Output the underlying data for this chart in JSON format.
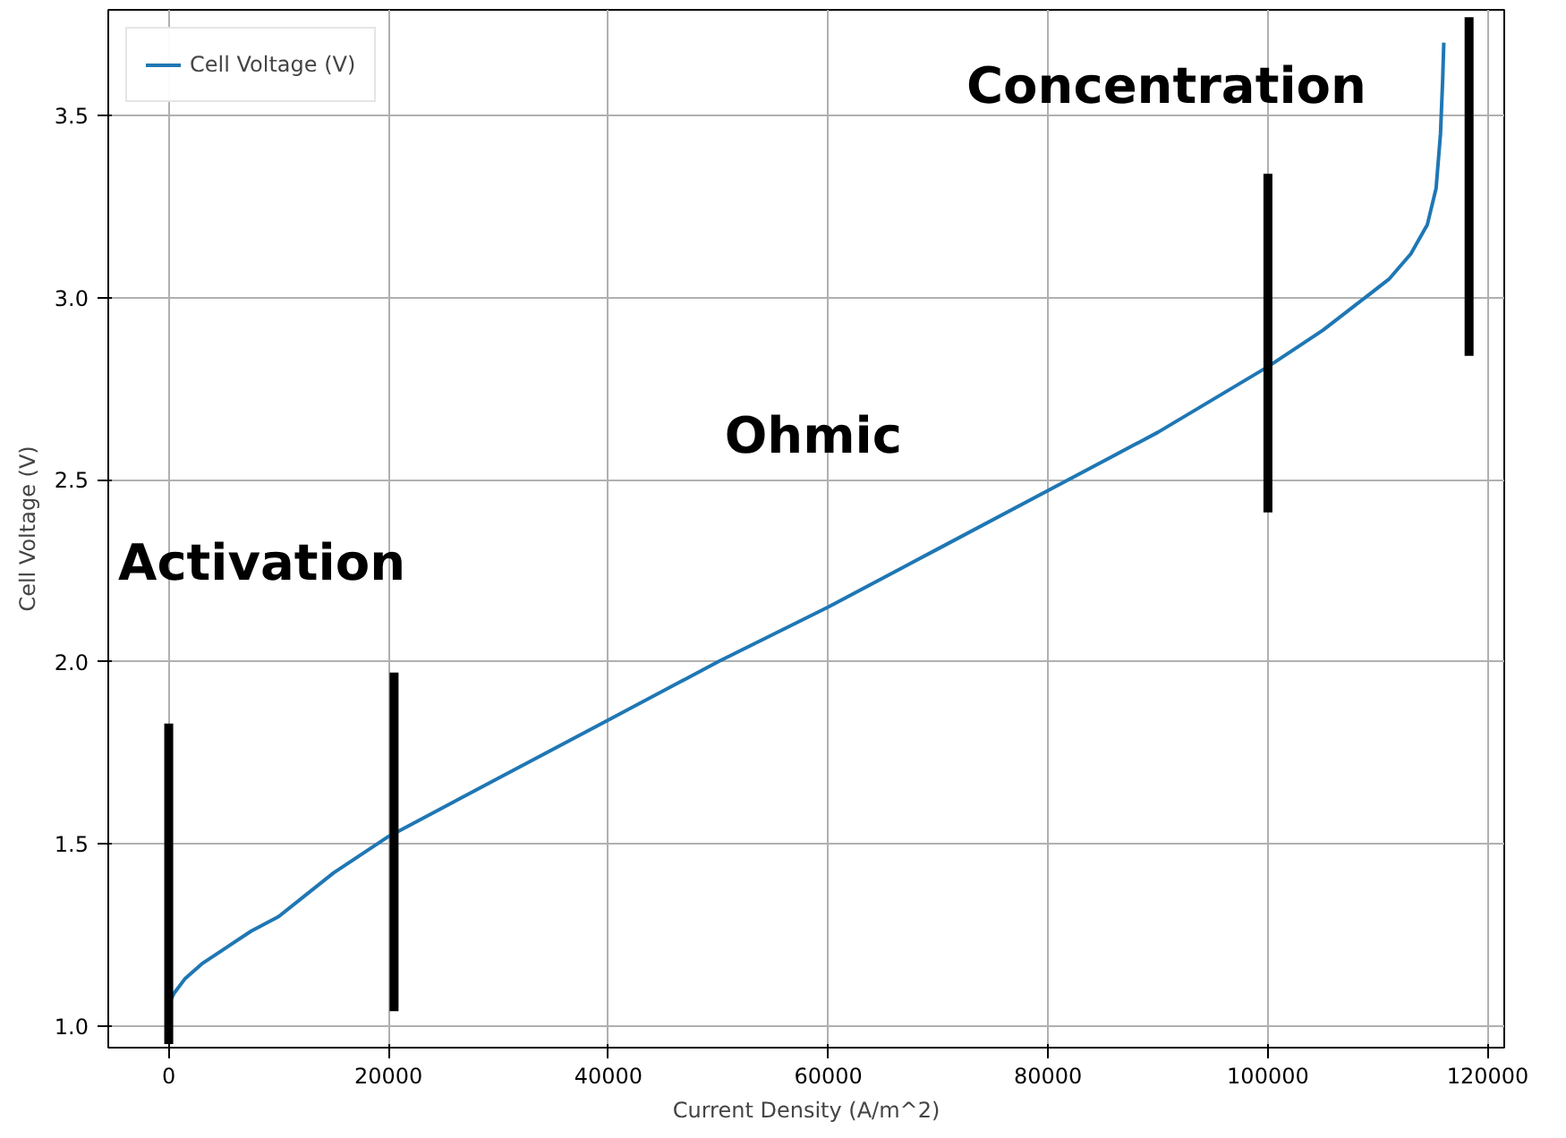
{
  "chart_data": {
    "type": "line",
    "xlabel": "Current Density (A/m^2)",
    "ylabel": "Cell Voltage (V)",
    "xlim": [
      -5500,
      121500
    ],
    "ylim": [
      0.94,
      3.79
    ],
    "xticks": [
      0,
      20000,
      40000,
      60000,
      80000,
      100000,
      120000
    ],
    "yticks": [
      {
        "value": 1,
        "label": "1.0"
      },
      1.5,
      {
        "value": 2,
        "label": "2.0"
      },
      2.5,
      {
        "value": 3,
        "label": "3.0"
      },
      3.5
    ],
    "grid": true,
    "legend": "top left",
    "series": [
      {
        "name": "Cell Voltage (V)",
        "color": "#1f77b4",
        "x": [
          0,
          500,
          1500,
          3000,
          5000,
          7500,
          10000,
          15000,
          20000,
          30000,
          40000,
          50000,
          60000,
          70000,
          80000,
          90000,
          100000,
          105000,
          108000,
          111000,
          113000,
          114500,
          115300,
          115700,
          115900,
          116000
        ],
        "values": [
          1.06,
          1.09,
          1.13,
          1.17,
          1.21,
          1.26,
          1.3,
          1.42,
          1.52,
          1.68,
          1.84,
          2.0,
          2.15,
          2.31,
          2.47,
          2.63,
          2.81,
          2.91,
          2.98,
          3.05,
          3.12,
          3.2,
          3.3,
          3.45,
          3.6,
          3.7
        ]
      },
      {
        "color": "#000000",
        "x": [
          0,
          0
        ],
        "values": [
          0.95,
          1.83
        ]
      },
      {
        "color": "#000000",
        "x": [
          20500,
          20500
        ],
        "values": [
          1.04,
          1.97
        ]
      },
      {
        "color": "#000000",
        "x": [
          100000,
          100000
        ],
        "values": [
          2.41,
          3.34
        ]
      },
      {
        "color": "#000000",
        "x": [
          118300,
          118300
        ],
        "values": [
          2.84,
          3.77
        ]
      }
    ],
    "annotations": [
      "Activation",
      "Ohmic",
      "Concentration"
    ]
  }
}
